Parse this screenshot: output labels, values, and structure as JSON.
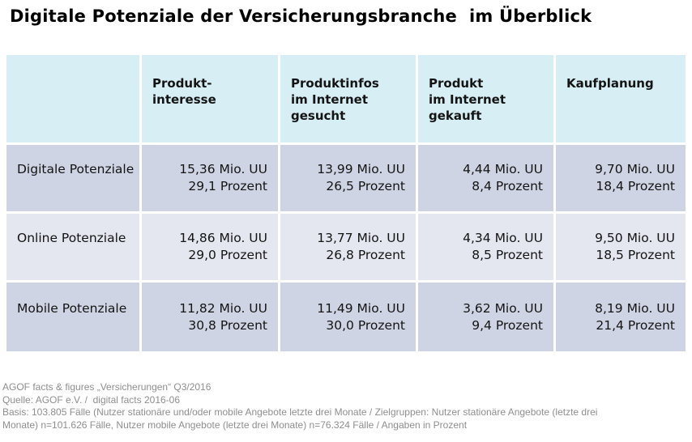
{
  "title": "Digitale Potenziale der Versicherungsbranche  im Überblick",
  "table": {
    "header": [
      {
        "lines": [
          "Produkt-",
          "interesse"
        ]
      },
      {
        "lines": [
          "Produktinfos",
          "im Internet",
          "gesucht"
        ]
      },
      {
        "lines": [
          "Produkt",
          "im Internet",
          "gekauft"
        ]
      },
      {
        "lines": [
          "Kaufplanung"
        ]
      }
    ],
    "rows": [
      {
        "label": "Digitale Potenziale",
        "cells": [
          {
            "uu": "15,36 Mio. UU",
            "pct": "29,1 Prozent"
          },
          {
            "uu": "13,99 Mio. UU",
            "pct": "26,5 Prozent"
          },
          {
            "uu": "4,44 Mio. UU",
            "pct": "8,4 Prozent"
          },
          {
            "uu": "9,70 Mio. UU",
            "pct": "18,4 Prozent"
          }
        ]
      },
      {
        "label": "Online Potenziale",
        "cells": [
          {
            "uu": "14,86 Mio. UU",
            "pct": "29,0 Prozent"
          },
          {
            "uu": "13,77 Mio. UU",
            "pct": "26,8 Prozent"
          },
          {
            "uu": "4,34 Mio. UU",
            "pct": "8,5 Prozent"
          },
          {
            "uu": "9,50 Mio. UU",
            "pct": "18,5 Prozent"
          }
        ]
      },
      {
        "label": "Mobile Potenziale",
        "cells": [
          {
            "uu": "11,82 Mio. UU",
            "pct": "30,8 Prozent"
          },
          {
            "uu": "11,49 Mio. UU",
            "pct": "30,0 Prozent"
          },
          {
            "uu": "3,62 Mio. UU",
            "pct": "9,4 Prozent"
          },
          {
            "uu": "8,19 Mio. UU",
            "pct": "21,4 Prozent"
          }
        ]
      }
    ]
  },
  "footer": {
    "line1": "AGOF facts & figures „Versicherungen“ Q3/2016",
    "line2": "Quelle: AGOF e.V. /  digital facts 2016-06",
    "line3": "Basis: 103.805 Fälle (Nutzer stationäre und/oder mobile Angebote letzte drei Monate / Zielgruppen: Nutzer stationäre Angebote (letzte drei",
    "line4": "Monate) n=101.626 Fälle, Nutzer mobile Angebote (letzte drei Monate) n=76.324 Fälle / Angaben in Prozent"
  },
  "colors": {
    "header_bg": "#d7eef5",
    "row_dark_bg": "#cfd4e4",
    "row_light_bg": "#e4e7f0",
    "text": "#141414",
    "footer_text": "#8e8e8e"
  },
  "chart_data": {
    "type": "table",
    "title": "Digitale Potenziale der Versicherungsbranche im Überblick",
    "columns": [
      "Produkt-interesse",
      "Produktinfos im Internet gesucht",
      "Produkt im Internet gekauft",
      "Kaufplanung"
    ],
    "row_labels": [
      "Digitale Potenziale",
      "Online Potenziale",
      "Mobile Potenziale"
    ],
    "values_mio_uu": [
      [
        15.36,
        13.99,
        4.44,
        9.7
      ],
      [
        14.86,
        13.77,
        4.34,
        9.5
      ],
      [
        11.82,
        11.49,
        3.62,
        8.19
      ]
    ],
    "values_prozent": [
      [
        29.1,
        26.5,
        8.4,
        18.4
      ],
      [
        29.0,
        26.8,
        8.5,
        18.5
      ],
      [
        30.8,
        30.0,
        9.4,
        21.4
      ]
    ],
    "units": [
      "Mio. UU",
      "Prozent"
    ],
    "source": "AGOF e.V. / digital facts 2016-06"
  }
}
